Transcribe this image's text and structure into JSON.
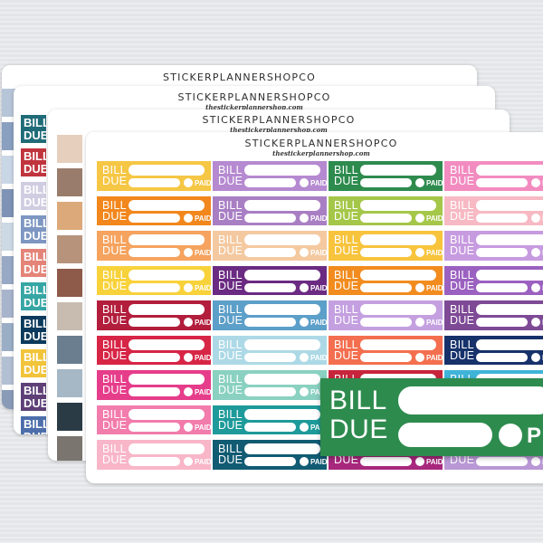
{
  "brand": "STICKERPLANNERSHOPCO",
  "url": "thestickerplannershop.com",
  "sticker": {
    "line1": "BILL",
    "line2": "DUE",
    "paid": "PAID"
  },
  "zoom": {
    "line1": "BILL",
    "line2": "DUE",
    "paid": "P",
    "color": "#2e8b4e"
  },
  "colors": {
    "back_sheet_1": [
      "#b7c5d8",
      "#8aa0c0",
      "#c9d6e6",
      "#7e93b6",
      "#cdd9e5",
      "#98a9c6",
      "#a8b4cc",
      "#9aaec6",
      "#b3bfd3",
      "#8a9bb8"
    ],
    "back_sheet_2": [
      "#1f6b78",
      "#c0343d",
      "#d0cde2",
      "#7e97c2",
      "#e48478",
      "#36a6a5",
      "#0c3a5c",
      "#f2c43a",
      "#5e4077",
      "#4c6eab"
    ],
    "back_sheet_3": [
      "#e6cfbd",
      "#9a7c6c",
      "#dca97a",
      "#b7937b",
      "#8e5a4a",
      "#c8bcb0",
      "#6a7e8f",
      "#a6b8c6",
      "#2b3b46",
      "#7a756e"
    ],
    "front_grid": [
      [
        "#f6c745",
        "#b58ad0",
        "#2e8b4e",
        "#f28cc0"
      ],
      [
        "#f2871d",
        "#a97fc4",
        "#a5c749",
        "#f7b9c3"
      ],
      [
        "#f5a35e",
        "#f4c9a0",
        "#f8c43d",
        "#c79be0"
      ],
      [
        "#f8d23b",
        "#6b2b82",
        "#f28c1f",
        "#9b61c0"
      ],
      [
        "#b21e3c",
        "#5c9fc9",
        "#c4a0e0",
        "#7e4a96"
      ],
      [
        "#d72546",
        "#add9e6",
        "#f36f4f",
        "#17326b"
      ],
      [
        "#e63d8b",
        "#8ad1c1",
        "#c8253c",
        "#3fb4d8"
      ],
      [
        "#f27cac",
        "#1e9a9a",
        "#d41866",
        "#e78fbd"
      ],
      [
        "#f8b6c8",
        "#115b73",
        "#a7287d",
        "#b998d5"
      ]
    ]
  }
}
